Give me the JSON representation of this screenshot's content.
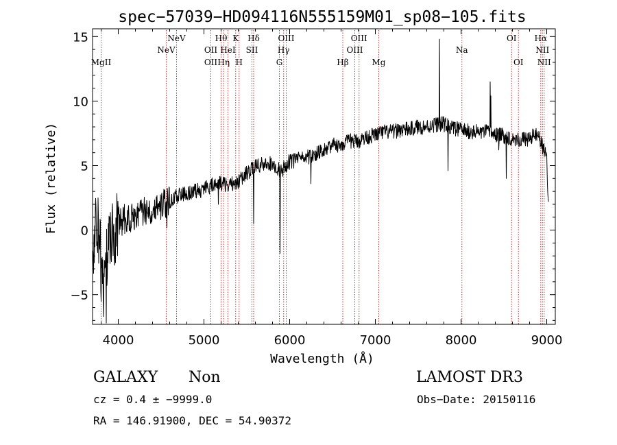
{
  "chart_data": {
    "type": "line",
    "title": "spec−57039−HD094116N555159M01_sp08−105.fits",
    "xlabel": "Wavelength (Å)",
    "ylabel": "Flux (relative)",
    "xlim": [
      3700,
      9100
    ],
    "ylim": [
      -7.3,
      15.6
    ],
    "x_ticks": [
      4000,
      5000,
      6000,
      7000,
      8000,
      9000
    ],
    "y_ticks": [
      -5,
      0,
      5,
      10,
      15
    ],
    "grid": false,
    "series": [
      {
        "name": "spectrum",
        "anchors": [
          [
            3700,
            -1.5
          ],
          [
            3750,
            1.5
          ],
          [
            3800,
            -2.5
          ],
          [
            3850,
            -3.0
          ],
          [
            3900,
            0.0
          ],
          [
            3950,
            -0.5
          ],
          [
            4000,
            0.6
          ],
          [
            4100,
            0.9
          ],
          [
            4200,
            1.2
          ],
          [
            4300,
            1.5
          ],
          [
            4400,
            1.7
          ],
          [
            4500,
            2.0
          ],
          [
            4600,
            2.2
          ],
          [
            4700,
            2.7
          ],
          [
            4800,
            2.9
          ],
          [
            4900,
            3.0
          ],
          [
            5000,
            3.2
          ],
          [
            5100,
            3.5
          ],
          [
            5200,
            3.6
          ],
          [
            5300,
            3.5
          ],
          [
            5400,
            3.8
          ],
          [
            5500,
            4.4
          ],
          [
            5600,
            4.9
          ],
          [
            5700,
            5.1
          ],
          [
            5800,
            5.2
          ],
          [
            5900,
            4.6
          ],
          [
            6000,
            5.3
          ],
          [
            6100,
            5.5
          ],
          [
            6200,
            5.6
          ],
          [
            6300,
            5.9
          ],
          [
            6400,
            6.3
          ],
          [
            6500,
            6.6
          ],
          [
            6600,
            6.6
          ],
          [
            6700,
            6.9
          ],
          [
            6800,
            6.9
          ],
          [
            6900,
            7.2
          ],
          [
            7000,
            7.4
          ],
          [
            7100,
            7.6
          ],
          [
            7200,
            7.6
          ],
          [
            7300,
            7.8
          ],
          [
            7400,
            7.8
          ],
          [
            7500,
            8.0
          ],
          [
            7600,
            8.0
          ],
          [
            7700,
            8.2
          ],
          [
            7800,
            8.2
          ],
          [
            7900,
            7.9
          ],
          [
            8000,
            7.8
          ],
          [
            8100,
            7.6
          ],
          [
            8200,
            7.6
          ],
          [
            8300,
            7.6
          ],
          [
            8400,
            7.4
          ],
          [
            8500,
            7.3
          ],
          [
            8600,
            7.1
          ],
          [
            8700,
            7.0
          ],
          [
            8800,
            7.1
          ],
          [
            8900,
            7.5
          ],
          [
            9000,
            5.5
          ],
          [
            9020,
            2.0
          ]
        ],
        "features": [
          {
            "wavelength": 3800,
            "value": -5.5
          },
          {
            "wavelength": 3830,
            "value": -6.7
          },
          {
            "wavelength": 3860,
            "value": -7.2
          },
          {
            "wavelength": 4570,
            "value": 0.2
          },
          {
            "wavelength": 5170,
            "value": 2.0
          },
          {
            "wavelength": 5580,
            "value": 0.5
          },
          {
            "wavelength": 5890,
            "value": -1.8
          },
          {
            "wavelength": 6250,
            "value": 3.6
          },
          {
            "wavelength": 7750,
            "value": 14.8
          },
          {
            "wavelength": 7850,
            "value": 4.6
          },
          {
            "wavelength": 8340,
            "value": 11.5
          },
          {
            "wavelength": 8350,
            "value": 10.4
          },
          {
            "wavelength": 8440,
            "value": 6.2
          },
          {
            "wavelength": 8530,
            "value": 4.0
          }
        ]
      }
    ],
    "spectral_lines": [
      {
        "label": "MgII",
        "wavelength": 3800,
        "row": 3
      },
      {
        "label": "NeV",
        "wavelength": 4560,
        "row": 2
      },
      {
        "label": "NeV",
        "wavelength": 4680,
        "row": 1
      },
      {
        "label": "OII",
        "wavelength": 5080,
        "row": 2
      },
      {
        "label": "OII",
        "wavelength": 5080,
        "row": 3
      },
      {
        "label": "Hθ",
        "wavelength": 5200,
        "row": 1
      },
      {
        "label": "Hη",
        "wavelength": 5230,
        "row": 3
      },
      {
        "label": "HeI",
        "wavelength": 5280,
        "row": 2
      },
      {
        "label": "K",
        "wavelength": 5370,
        "row": 1
      },
      {
        "label": "H",
        "wavelength": 5410,
        "row": 3
      },
      {
        "label": "SII",
        "wavelength": 5560,
        "row": 2
      },
      {
        "label": "Hδ",
        "wavelength": 5580,
        "row": 1
      },
      {
        "label": "G",
        "wavelength": 5880,
        "row": 3
      },
      {
        "label": "Hγ",
        "wavelength": 5930,
        "row": 2
      },
      {
        "label": "OIII",
        "wavelength": 5960,
        "row": 1
      },
      {
        "label": "Hβ",
        "wavelength": 6620,
        "row": 3
      },
      {
        "label": "OIII",
        "wavelength": 6760,
        "row": 2
      },
      {
        "label": "OIII",
        "wavelength": 6810,
        "row": 1
      },
      {
        "label": "Mg",
        "wavelength": 7040,
        "row": 3
      },
      {
        "label": "Na",
        "wavelength": 8010,
        "row": 2
      },
      {
        "label": "OI",
        "wavelength": 8590,
        "row": 1
      },
      {
        "label": "OI",
        "wavelength": 8670,
        "row": 3
      },
      {
        "label": "Hα",
        "wavelength": 8930,
        "row": 1
      },
      {
        "label": "NII",
        "wavelength": 8950,
        "row": 2
      },
      {
        "label": "NII",
        "wavelength": 8970,
        "row": 3
      }
    ],
    "colors": {
      "spectrum": "#000000",
      "lines": "#cc3333",
      "axes": "#000000"
    }
  },
  "info": {
    "object_class": "GALAXY",
    "subclass": "Non",
    "survey": "LAMOST DR3",
    "cz": "cz = 0.4 ± −9999.0",
    "obs_date": "Obs−Date: 20150116",
    "coords": "RA = 146.91900, DEC =  54.90372"
  }
}
